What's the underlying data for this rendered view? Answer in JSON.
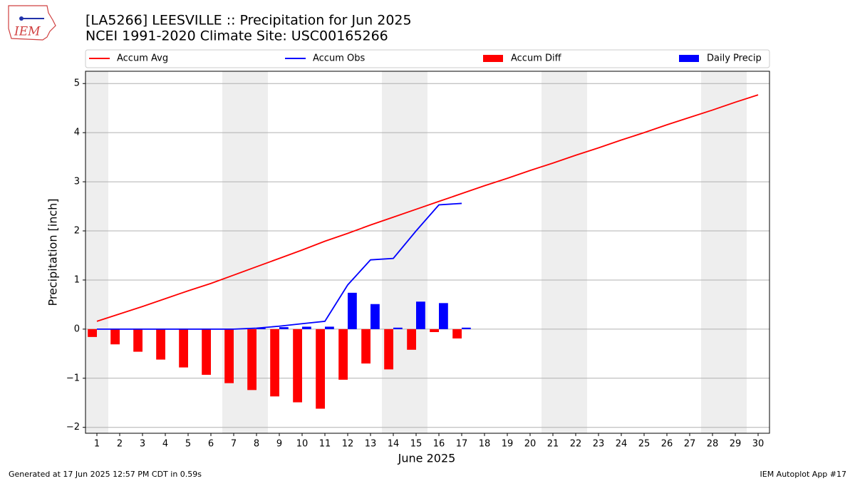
{
  "chart_data": {
    "type": "bar",
    "title": "[LA5266] LEESVILLE :: Precipitation for Jun 2025",
    "subtitle": "NCEI 1991-2020 Climate Site: USC00165266",
    "logo_text": "IEM",
    "xlabel": "June 2025",
    "ylabel": "Precipitation [inch]",
    "footer_left": "Generated at 17 Jun 2025 12:57 PM CDT in 0.59s",
    "footer_right": "IEM Autoplot App #17",
    "x": [
      1,
      2,
      3,
      4,
      5,
      6,
      7,
      8,
      9,
      10,
      11,
      12,
      13,
      14,
      15,
      16,
      17,
      18,
      19,
      20,
      21,
      22,
      23,
      24,
      25,
      26,
      27,
      28,
      29,
      30
    ],
    "xlim": [
      0.5,
      30.5
    ],
    "xticks": [
      1,
      2,
      3,
      4,
      5,
      6,
      7,
      8,
      9,
      10,
      11,
      12,
      13,
      14,
      15,
      16,
      17,
      18,
      19,
      20,
      21,
      22,
      23,
      24,
      25,
      26,
      27,
      28,
      29,
      30
    ],
    "ylim": [
      -2.12,
      5.25
    ],
    "yticks": [
      {
        "value": -2,
        "label": "−2"
      },
      {
        "value": -1,
        "label": "−1"
      },
      0,
      1,
      2,
      3,
      4,
      5
    ],
    "grid": true,
    "shaded_ranges": [
      [
        0.5,
        1.5
      ],
      [
        6.5,
        8.5
      ],
      [
        13.5,
        15.5
      ],
      [
        20.5,
        22.5
      ],
      [
        27.5,
        29.5
      ]
    ],
    "series": [
      {
        "name": "Accum Avg",
        "type": "line",
        "color": "#ff0000",
        "values": [
          0.16,
          0.31,
          0.46,
          0.62,
          0.78,
          0.93,
          1.1,
          1.27,
          1.44,
          1.61,
          1.79,
          1.95,
          2.12,
          2.28,
          2.44,
          2.6,
          2.76,
          2.92,
          3.07,
          3.23,
          3.38,
          3.54,
          3.69,
          3.85,
          4.0,
          4.16,
          4.31,
          4.46,
          4.62,
          4.77
        ]
      },
      {
        "name": "Accum Obs",
        "type": "line",
        "color": "#0000ff",
        "values": [
          0,
          0,
          0,
          0,
          0,
          0,
          0,
          0.02,
          0.06,
          0.11,
          0.16,
          0.9,
          1.41,
          1.44,
          2.0,
          2.53,
          2.56,
          null,
          null,
          null,
          null,
          null,
          null,
          null,
          null,
          null,
          null,
          null,
          null,
          null
        ]
      },
      {
        "name": "Accum Diff",
        "type": "bar",
        "color": "#ff0000",
        "values": [
          -0.16,
          -0.31,
          -0.46,
          -0.62,
          -0.78,
          -0.93,
          -1.1,
          -1.24,
          -1.37,
          -1.49,
          -1.62,
          -1.03,
          -0.7,
          -0.82,
          -0.42,
          -0.06,
          -0.19,
          null,
          null,
          null,
          null,
          null,
          null,
          null,
          null,
          null,
          null,
          null,
          null,
          null
        ]
      },
      {
        "name": "Daily Precip",
        "type": "bar",
        "color": "#0000ff",
        "values": [
          0,
          0,
          0,
          0,
          0,
          0,
          0,
          0.02,
          0.04,
          0.05,
          0.05,
          0.74,
          0.51,
          0.03,
          0.56,
          0.53,
          0.03,
          null,
          null,
          null,
          null,
          null,
          null,
          null,
          null,
          null,
          null,
          null,
          null,
          null
        ]
      }
    ]
  }
}
